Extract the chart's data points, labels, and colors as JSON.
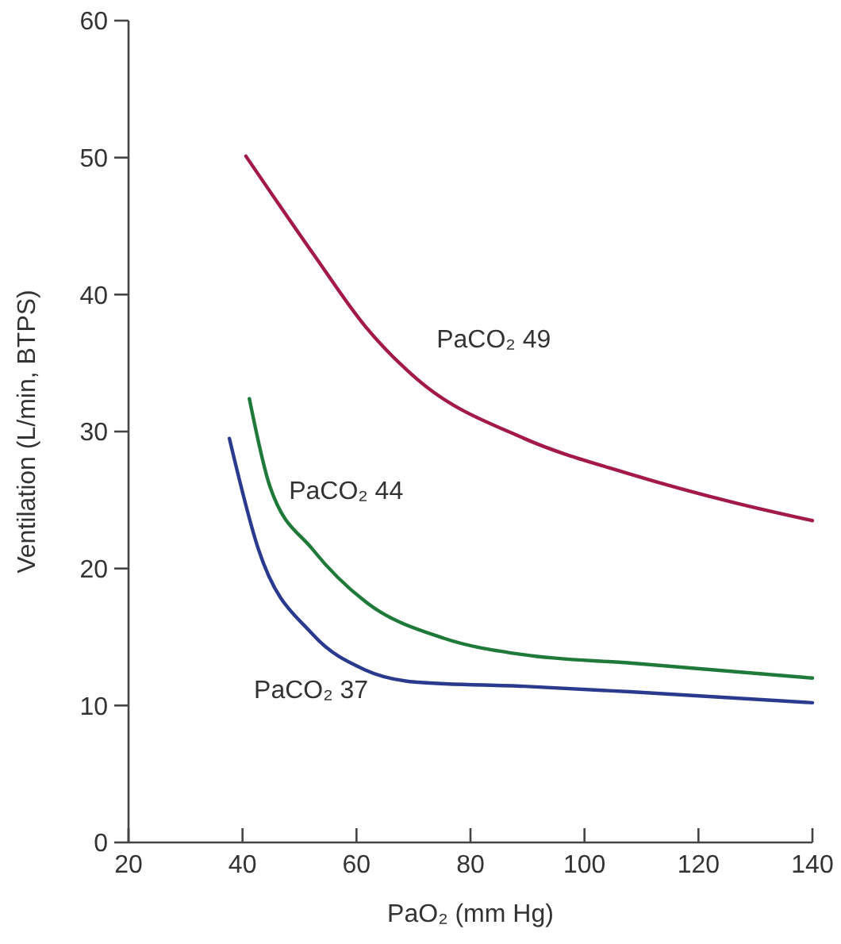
{
  "chart_data": {
    "type": "line",
    "xlabel": "PaO₂ (mm Hg)",
    "ylabel": "Ventilation (L/min, BTPS)",
    "xlim": [
      20,
      140
    ],
    "xticks": [
      20,
      40,
      60,
      80,
      100,
      120,
      140
    ],
    "ylim": [
      0,
      60
    ],
    "yticks": [
      0,
      10,
      20,
      30,
      40,
      50,
      60
    ],
    "marker": "none",
    "line_style": "solid",
    "series": [
      {
        "name": "PaCO₂ 49",
        "color": "#a3194a",
        "x": [
          40.6,
          52.7,
          61.5,
          70.7,
          89.4,
          108,
          126.4,
          140
        ],
        "values": [
          50.1,
          42.8,
          37.7,
          33.8,
          29.5,
          26.9,
          24.8,
          23.5
        ]
      },
      {
        "name": "PaCO₂ 44",
        "color": "#1f7a3a",
        "x": [
          41.2,
          44.8,
          52.3,
          61.5,
          75.4,
          89.4,
          108,
          140
        ],
        "values": [
          32.4,
          26.0,
          21.4,
          17.6,
          14.9,
          13.7,
          13.1,
          12.0
        ]
      },
      {
        "name": "PaCO₂ 37",
        "color": "#2a3a8f",
        "x": [
          37.7,
          42.8,
          52.3,
          61.5,
          70.7,
          89.4,
          108,
          140
        ],
        "values": [
          29.5,
          21.4,
          15.2,
          12.6,
          11.7,
          11.4,
          11.0,
          10.2
        ]
      }
    ]
  }
}
